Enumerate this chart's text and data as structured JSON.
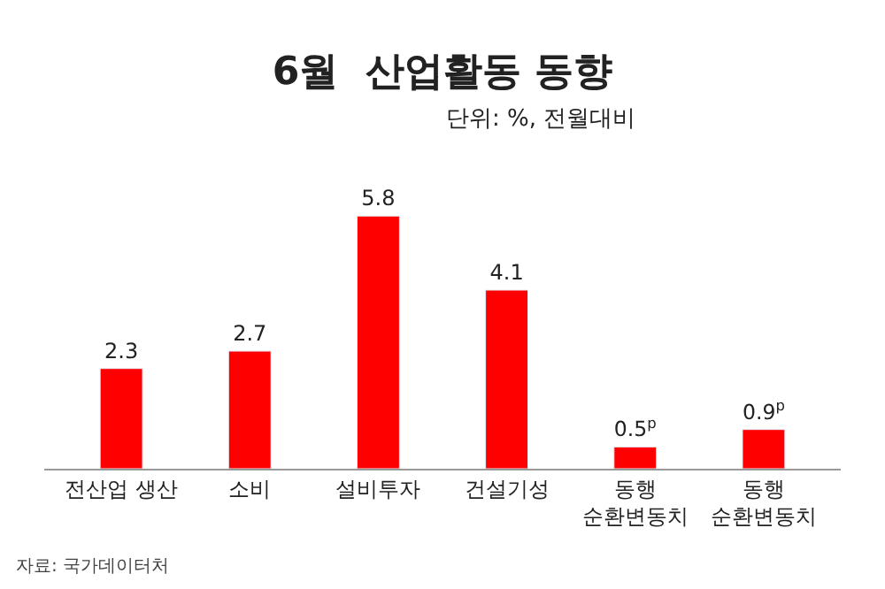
{
  "chart_data": {
    "type": "bar",
    "title": "6월  산업활동 동향",
    "subtitle": "단위: %, 전월대비",
    "categories": [
      "전산업 생산",
      "소비",
      "설비투자",
      "건설기성",
      "동행\n순환변동치",
      "동행\n순환변동치"
    ],
    "values": [
      2.3,
      2.7,
      5.8,
      4.1,
      0.5,
      0.9
    ],
    "color": "#ff0000",
    "value_labels": [
      "2.3",
      "2.7",
      "5.8",
      "4.1",
      "0.5$^{p}$",
      "0.9$^{p}$"
    ],
    "annotations": [
      "자료: 국가데이터처"
    ]
  }
}
